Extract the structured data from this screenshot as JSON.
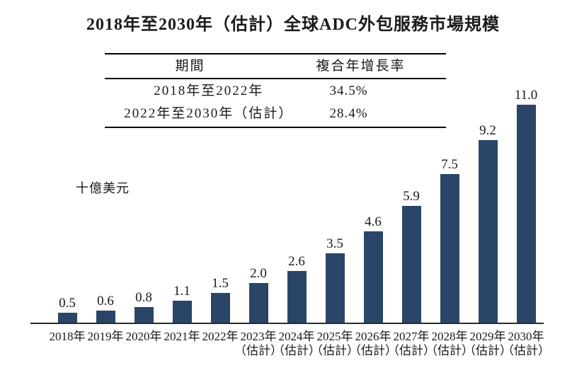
{
  "title": "2018年至2030年（估計）全球ADC外包服務市場規模",
  "table": {
    "headers": [
      "期間",
      "複合年增長率"
    ],
    "rows": [
      {
        "period": "2018年至2022年",
        "rate": "34.5%"
      },
      {
        "period": "2022年至2030年（估計）",
        "rate": "28.4%"
      }
    ]
  },
  "colors": {
    "bar": "#2b4568",
    "axis": "#2b2b2b",
    "text": "#1a1a1a"
  },
  "chart_data": {
    "type": "bar",
    "title": "2018年至2030年（估計）全球ADC外包服務市場規模",
    "xlabel": "",
    "ylabel": "十億美元",
    "categories": [
      "2018年",
      "2019年",
      "2020年",
      "2021年",
      "2022年",
      "2023年（估計）",
      "2024年（估計）",
      "2025年（估計）",
      "2026年（估計）",
      "2027年（估計）",
      "2028年（估計）",
      "2029年（估計）",
      "2030年（估計）"
    ],
    "values": [
      0.5,
      0.6,
      0.8,
      1.1,
      1.5,
      2.0,
      2.6,
      3.5,
      4.6,
      5.9,
      7.5,
      9.2,
      11.0
    ],
    "value_labels": [
      "0.5",
      "0.6",
      "0.8",
      "1.1",
      "1.5",
      "2.0",
      "2.6",
      "3.5",
      "4.6",
      "5.9",
      "7.5",
      "9.2",
      "11.0"
    ],
    "estimate_suffix": "（估計）",
    "ylim": [
      0,
      11.5
    ],
    "grid": false,
    "legend": "none",
    "bar_color": "#2b4568"
  }
}
